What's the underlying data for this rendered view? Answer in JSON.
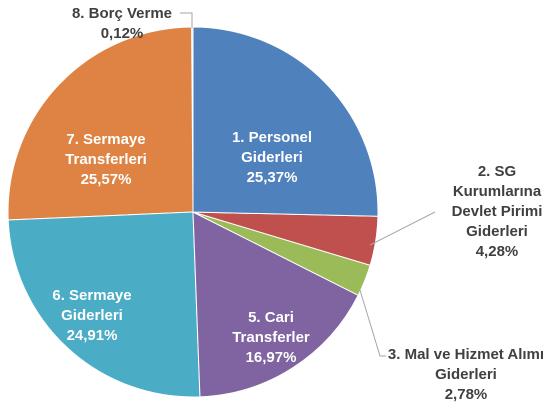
{
  "chart_data": {
    "type": "pie",
    "categories": [
      "1. Personel Giderleri",
      "2. SG Kurumlarına Devlet Pirimi Giderleri",
      "3. Mal ve Hizmet Alımı Giderleri",
      "5. Cari Transferler",
      "6. Sermaye Giderleri",
      "7. Sermaye Transferleri",
      "8. Borç Verme"
    ],
    "values": [
      25.37,
      4.28,
      2.78,
      16.97,
      24.91,
      25.57,
      0.12
    ],
    "value_labels": [
      "25,37%",
      "4,28%",
      "2,78%",
      "16,97%",
      "24,91%",
      "25,57%",
      "0,12%"
    ],
    "colors": [
      "#4f81bd",
      "#c0504d",
      "#9bbb59",
      "#8064a2",
      "#4bacc6",
      "#de8344",
      "#d9d9d9"
    ]
  }
}
